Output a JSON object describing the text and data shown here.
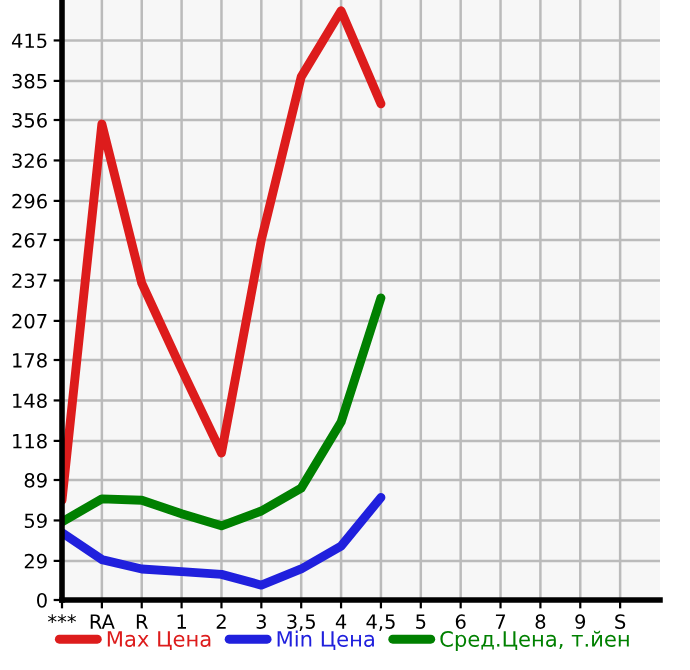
{
  "chart_data": {
    "type": "line",
    "categories": [
      "***",
      "RA",
      "R",
      "1",
      "2",
      "3",
      "3,5",
      "4",
      "4,5",
      "5",
      "6",
      "7",
      "8",
      "9",
      "S"
    ],
    "series": [
      {
        "name": "Max Цена",
        "color": "#dd1c1c",
        "values": [
          74,
          353,
          235,
          171,
          109,
          267,
          388,
          437,
          368,
          null,
          null,
          null,
          null,
          null,
          null
        ]
      },
      {
        "name": "Min Цена",
        "color": "#2020dd",
        "values": [
          50,
          30,
          23,
          21,
          19,
          11,
          23,
          40,
          76,
          null,
          null,
          null,
          null,
          null,
          null
        ]
      },
      {
        "name": "Сред.Цена, т.йен",
        "color": "#008000",
        "values": [
          58,
          75,
          74,
          64,
          55,
          66,
          83,
          132,
          224,
          null,
          null,
          null,
          null,
          null,
          null
        ]
      }
    ],
    "ylim": [
      0,
      445
    ],
    "yticks": [
      0,
      29,
      59,
      89,
      118,
      148,
      178,
      207,
      237,
      267,
      296,
      326,
      356,
      385,
      415
    ],
    "grid": true,
    "legend": "bottom",
    "line_style": "solid",
    "marker": "none"
  }
}
